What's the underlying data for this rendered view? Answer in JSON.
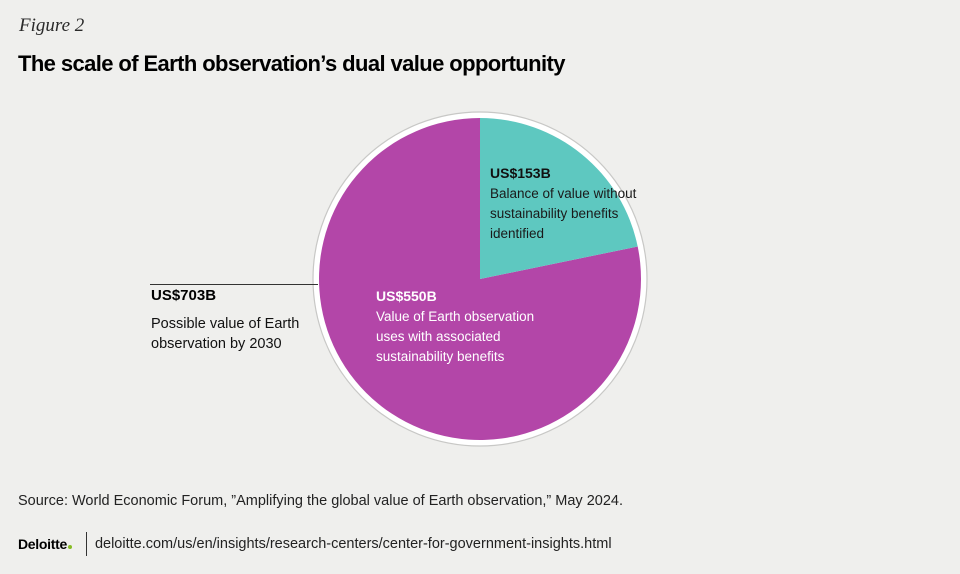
{
  "figure_label": "Figure 2",
  "title": "The scale of Earth observation’s dual value opportunity",
  "chart_data": {
    "type": "pie",
    "title": "The scale of Earth observation’s dual value opportunity",
    "total": {
      "value": 703,
      "label": "US$703B",
      "description": "Possible value of Earth observation by 2030"
    },
    "slices": [
      {
        "value": 550,
        "label": "US$550B",
        "description": "Value of Earth observation uses with associated sustainability benefits",
        "color": "#b346a8"
      },
      {
        "value": 153,
        "label": "US$153B",
        "description": "Balance of value without sustainability benefits identified",
        "color": "#5ec8c0"
      }
    ]
  },
  "source": "Source: World Economic Forum, ”Amplifying the global value of Earth observation,” May 2024.",
  "footer": {
    "logo": "Deloitte",
    "url": "deloitte.com/us/en/insights/research-centers/center-for-government-insights.html"
  }
}
